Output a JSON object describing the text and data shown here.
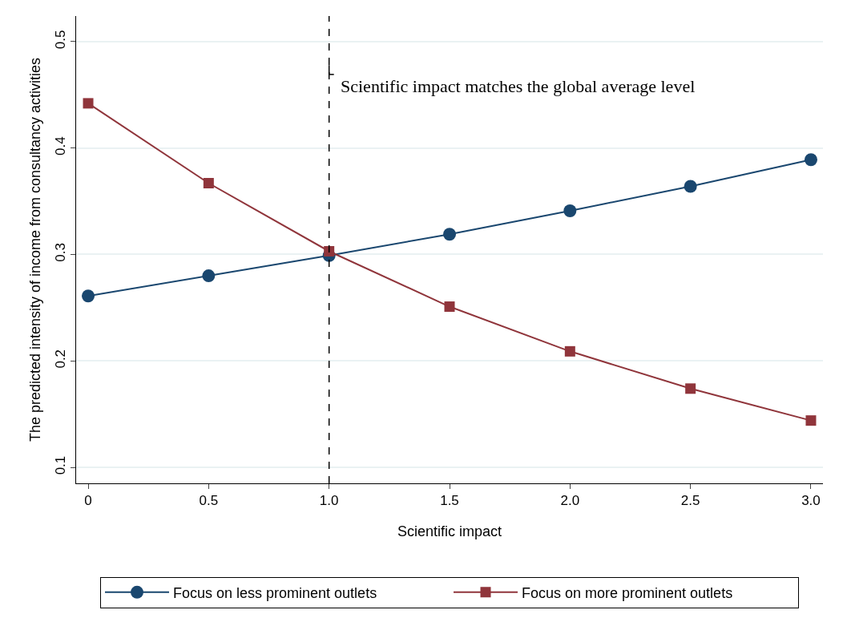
{
  "chart_data": {
    "type": "line",
    "xlabel": "Scientific impact",
    "ylabel": "The predicted intensity of income from consultancy activities",
    "x": [
      0,
      0.5,
      1.0,
      1.5,
      2.0,
      2.5,
      3.0
    ],
    "series": [
      {
        "name": "Focus on less prominent outlets",
        "color": "#1a476f",
        "marker": "circle",
        "values": [
          0.261,
          0.28,
          0.299,
          0.319,
          0.341,
          0.364,
          0.389
        ]
      },
      {
        "name": "Focus on more prominent outlets",
        "color": "#90353b",
        "marker": "square",
        "values": [
          0.442,
          0.367,
          0.303,
          0.251,
          0.209,
          0.174,
          0.144
        ]
      }
    ],
    "xlim": [
      -0.05,
      3.05
    ],
    "xticks": [
      0,
      0.5,
      {
        "value": 1.0,
        "label": "1.0"
      },
      1.5,
      {
        "value": 2.0,
        "label": "2.0"
      },
      2.5,
      {
        "value": 3.0,
        "label": "3.0"
      }
    ],
    "ylim": [
      0.085,
      0.524
    ],
    "yticks": [
      0.1,
      0.2,
      0.3,
      0.4,
      0.5
    ],
    "ref_lines": [
      {
        "axis": "x",
        "value": 1.0,
        "label": "Scientific impact matches the global average level",
        "color": "#000000",
        "line_style": "dashed"
      }
    ],
    "grid": "y",
    "legend": "bottom"
  }
}
